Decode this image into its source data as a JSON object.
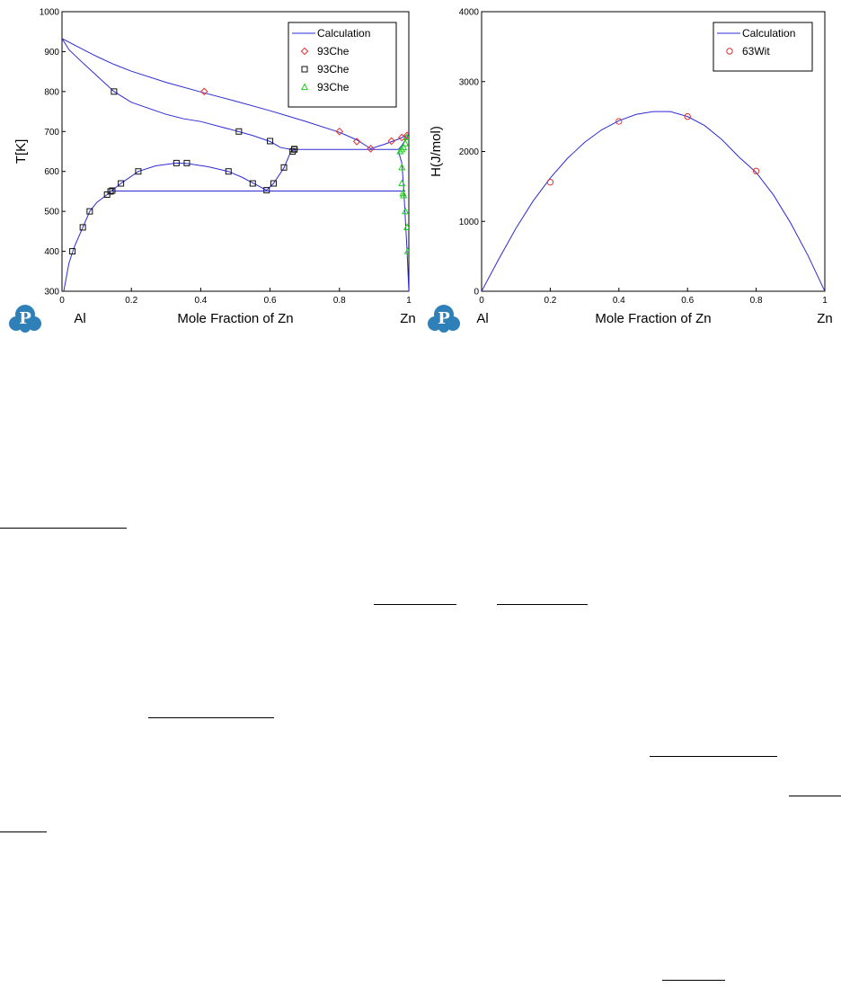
{
  "chart_data": [
    {
      "type": "line",
      "ylabel": "T[K]",
      "xlabel": "Mole Fraction of Zn",
      "x_end_labels": {
        "left": "Al",
        "right": "Zn"
      },
      "xlim": [
        0,
        1
      ],
      "ylim": [
        300,
        1000
      ],
      "xticks": [
        "0",
        "0.2",
        "0.4",
        "0.6",
        "0.8",
        "1"
      ],
      "yticks": [
        "300",
        "400",
        "500",
        "600",
        "700",
        "800",
        "900",
        "1000"
      ],
      "legend_position": "top-right",
      "legend": [
        {
          "label": "Calculation",
          "marker": "line",
          "color": "#2b2bd6"
        },
        {
          "label": "93Che",
          "marker": "diamond",
          "color": "#e03030"
        },
        {
          "label": "93Che",
          "marker": "square",
          "color": "#111111"
        },
        {
          "label": "93Che",
          "marker": "triangle",
          "color": "#22cc22"
        }
      ],
      "series": [
        {
          "name": "Calculation",
          "points": [
            [
              0,
              933
            ],
            [
              0.05,
              910
            ],
            [
              0.1,
              888
            ],
            [
              0.15,
              868
            ],
            [
              0.2,
              851
            ],
            [
              0.3,
              823
            ],
            [
              0.4,
              799
            ],
            [
              0.5,
              776
            ],
            [
              0.6,
              752
            ],
            [
              0.7,
              726
            ],
            [
              0.8,
              698
            ],
            [
              0.85,
              679
            ],
            [
              0.89,
              657
            ],
            [
              0.93,
              668
            ],
            [
              0.97,
              681
            ],
            [
              1,
              693
            ]
          ]
        },
        {
          "name": "Calculation",
          "points": [
            [
              0,
              933
            ],
            [
              0.02,
              905
            ],
            [
              0.05,
              880
            ],
            [
              0.1,
              840
            ],
            [
              0.15,
              800
            ],
            [
              0.2,
              773
            ],
            [
              0.3,
              743
            ],
            [
              0.35,
              732
            ],
            [
              0.4,
              725
            ],
            [
              0.5,
              702
            ],
            [
              0.55,
              690
            ],
            [
              0.6,
              675
            ],
            [
              0.63,
              660
            ],
            [
              0.66,
              655
            ]
          ]
        },
        {
          "name": "Calculation",
          "points": [
            [
              0.66,
              655
            ],
            [
              0.97,
              655
            ]
          ]
        },
        {
          "name": "Calculation",
          "points": [
            [
              0.142,
              551
            ],
            [
              0.99,
              551
            ]
          ]
        },
        {
          "name": "Calculation",
          "points": [
            [
              0.005,
              300
            ],
            [
              0.02,
              370
            ],
            [
              0.035,
              410
            ],
            [
              0.06,
              460
            ],
            [
              0.08,
              500
            ],
            [
              0.1,
              522
            ],
            [
              0.13,
              542
            ],
            [
              0.142,
              551
            ],
            [
              0.17,
              570
            ],
            [
              0.22,
              600
            ],
            [
              0.27,
              614
            ],
            [
              0.33,
              621
            ],
            [
              0.36,
              620
            ],
            [
              0.42,
              612
            ],
            [
              0.48,
              600
            ],
            [
              0.52,
              585
            ],
            [
              0.55,
              571
            ],
            [
              0.59,
              553
            ],
            [
              0.61,
              570
            ],
            [
              0.64,
              609
            ],
            [
              0.66,
              650
            ],
            [
              0.68,
              658
            ]
          ]
        },
        {
          "name": "Calculation",
          "points": [
            [
              0.97,
              655
            ],
            [
              0.98,
              665
            ],
            [
              0.99,
              679
            ],
            [
              1,
              693
            ]
          ]
        },
        {
          "name": "Calculation",
          "points": [
            [
              0.97,
              651
            ],
            [
              0.98,
              620
            ],
            [
              0.985,
              560
            ],
            [
              0.99,
              480
            ],
            [
              0.995,
              400
            ],
            [
              1,
              300
            ]
          ]
        },
        {
          "name": "93Che",
          "marker": "diamond",
          "color": "#e03030",
          "points": [
            [
              0.41,
              800
            ],
            [
              0.8,
              700
            ],
            [
              0.85,
              675
            ],
            [
              0.89,
              657
            ],
            [
              0.95,
              676
            ],
            [
              0.98,
              685
            ],
            [
              0.995,
              690
            ]
          ]
        },
        {
          "name": "93Che",
          "marker": "square",
          "color": "#111111",
          "points": [
            [
              0.15,
              800
            ],
            [
              0.51,
              700
            ],
            [
              0.6,
              676
            ],
            [
              0.67,
              656
            ],
            [
              0.03,
              400
            ],
            [
              0.06,
              460
            ],
            [
              0.08,
              500
            ],
            [
              0.13,
              542
            ],
            [
              0.14,
              550
            ],
            [
              0.145,
              552
            ],
            [
              0.17,
              570
            ],
            [
              0.22,
              600
            ],
            [
              0.33,
              621
            ],
            [
              0.36,
              621
            ],
            [
              0.48,
              600
            ],
            [
              0.55,
              570
            ],
            [
              0.59,
              553
            ],
            [
              0.61,
              570
            ],
            [
              0.64,
              610
            ],
            [
              0.665,
              650
            ],
            [
              0.67,
              655
            ]
          ]
        },
        {
          "name": "93Che",
          "marker": "triangle",
          "color": "#22cc22",
          "points": [
            [
              0.975,
              650
            ],
            [
              0.98,
              655
            ],
            [
              0.985,
              660
            ],
            [
              0.99,
              670
            ],
            [
              0.995,
              685
            ],
            [
              0.98,
              610
            ],
            [
              0.98,
              570
            ],
            [
              0.983,
              545
            ],
            [
              0.985,
              540
            ],
            [
              0.99,
              500
            ],
            [
              0.995,
              460
            ],
            [
              0.997,
              400
            ]
          ]
        }
      ]
    },
    {
      "type": "line",
      "ylabel": "H(J/mol)",
      "xlabel": "Mole Fraction of Zn",
      "x_end_labels": {
        "left": "Al",
        "right": "Zn"
      },
      "xlim": [
        0,
        1
      ],
      "ylim": [
        0,
        4000
      ],
      "xticks": [
        "0",
        "0.2",
        "0.4",
        "0.6",
        "0.8",
        "1"
      ],
      "yticks": [
        "0",
        "1000",
        "2000",
        "3000",
        "4000"
      ],
      "legend_position": "top-right",
      "legend": [
        {
          "label": "Calculation",
          "marker": "line",
          "color": "#2b2bd6"
        },
        {
          "label": "63Wit",
          "marker": "circle",
          "color": "#e03030"
        }
      ],
      "series": [
        {
          "name": "Calculation",
          "points": [
            [
              0,
              0
            ],
            [
              0.05,
              460
            ],
            [
              0.1,
              900
            ],
            [
              0.15,
              1290
            ],
            [
              0.2,
              1620
            ],
            [
              0.25,
              1900
            ],
            [
              0.3,
              2130
            ],
            [
              0.35,
              2310
            ],
            [
              0.4,
              2440
            ],
            [
              0.45,
              2530
            ],
            [
              0.5,
              2570
            ],
            [
              0.55,
              2570
            ],
            [
              0.6,
              2500
            ],
            [
              0.65,
              2370
            ],
            [
              0.7,
              2170
            ],
            [
              0.75,
              1920
            ],
            [
              0.8,
              1700
            ],
            [
              0.85,
              1380
            ],
            [
              0.9,
              980
            ],
            [
              0.95,
              520
            ],
            [
              1,
              0
            ]
          ]
        },
        {
          "name": "63Wit",
          "marker": "circle",
          "color": "#e03030",
          "points": [
            [
              0.2,
              1560
            ],
            [
              0.4,
              2430
            ],
            [
              0.6,
              2500
            ],
            [
              0.8,
              1720
            ]
          ]
        }
      ]
    }
  ]
}
